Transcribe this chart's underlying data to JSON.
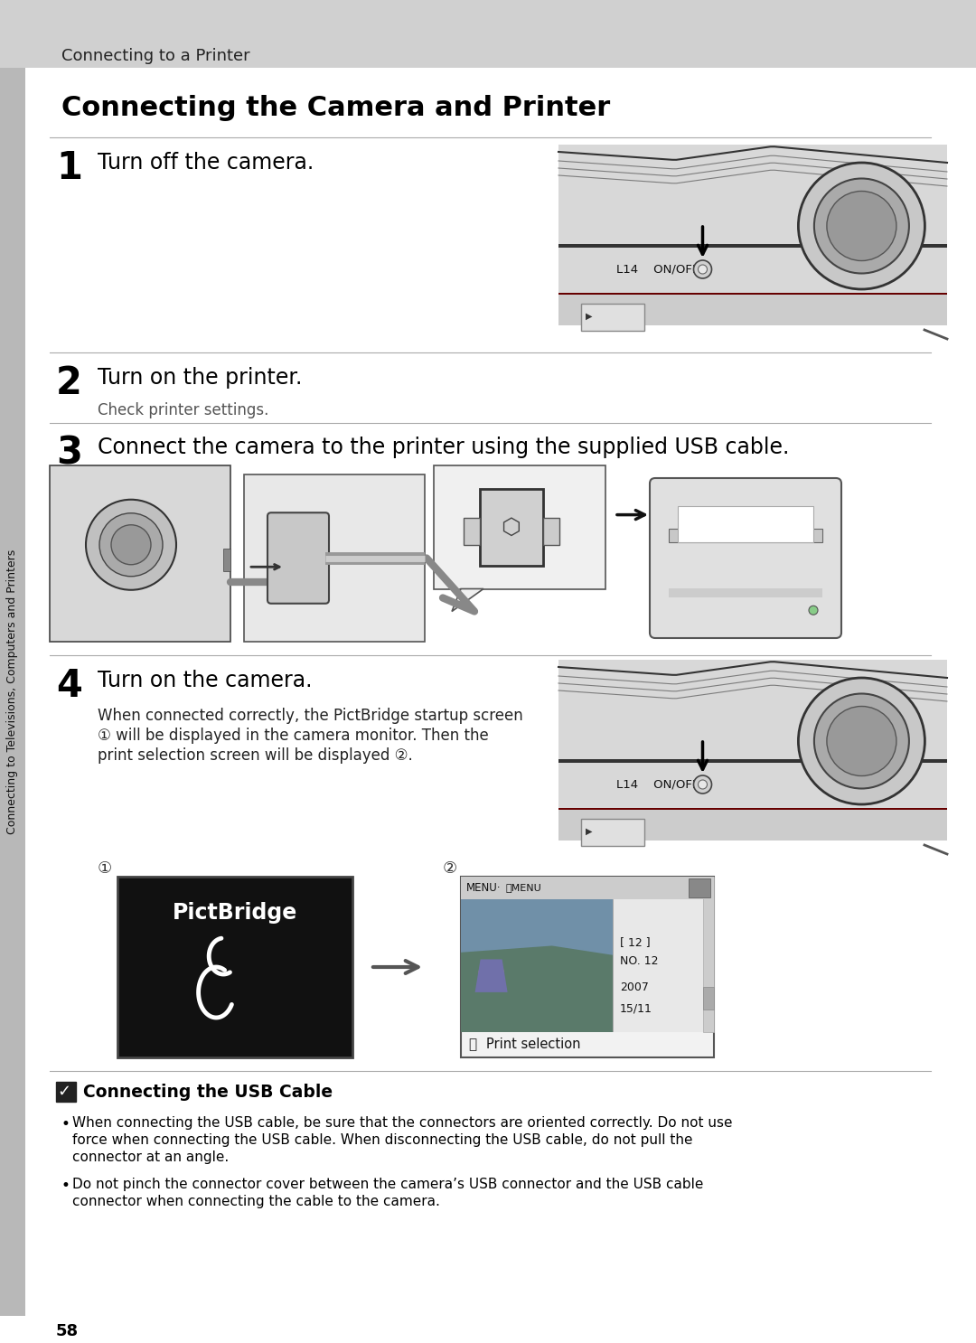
{
  "bg_color": "#ffffff",
  "header_bg": "#d0d0d0",
  "header_text": "Connecting to a Printer",
  "sidebar_text": "Connecting to Televisions, Computers and Printers",
  "sidebar_bg": "#b8b8b8",
  "title": "Connecting the Camera and Printer",
  "step1_num": "1",
  "step1_text": "Turn off the camera.",
  "step2_num": "2",
  "step2_text": "Turn on the printer.",
  "step2_sub": "Check printer settings.",
  "step3_num": "3",
  "step3_text": "Connect the camera to the printer using the supplied USB cable.",
  "step4_num": "4",
  "step4_text": "Turn on the camera.",
  "step4_sub1": "When connected correctly, the PictBridge startup screen",
  "step4_sub2": "① will be displayed in the camera monitor. Then the",
  "step4_sub3": "print selection screen will be displayed ②.",
  "note_title": "Connecting the USB Cable",
  "note_bullet1a": "When connecting the USB cable, be sure that the connectors are oriented correctly. Do not use",
  "note_bullet1b": "force when connecting the USB cable. When disconnecting the USB cable, do not pull the",
  "note_bullet1c": "connector at an angle.",
  "note_bullet2a": "Do not pinch the connector cover between the camera’s USB connector and the USB cable",
  "note_bullet2b": "connector when connecting the cable to the camera.",
  "page_num": "58",
  "cam_bg": "#d8d8d8",
  "cam_dark": "#888888",
  "cam_border": "#555555"
}
